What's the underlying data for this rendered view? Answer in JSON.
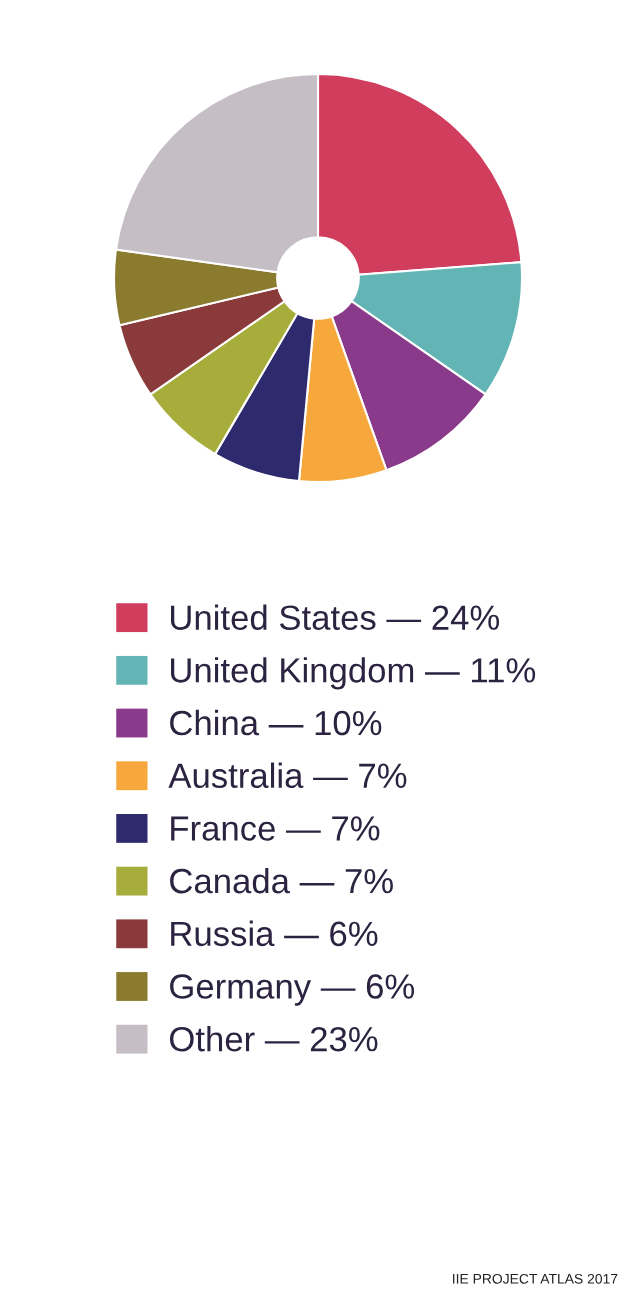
{
  "chart_data": {
    "type": "donut",
    "categories": [
      "United States — 24%",
      "United Kingdom — 11%",
      "China — 10%",
      "Australia — 7%",
      "France — 7%",
      "Canada — 7%",
      "Russia — 6%",
      "Germany — 6%",
      "Other — 23%"
    ],
    "values": [
      24,
      11,
      10,
      7,
      7,
      7,
      6,
      6,
      23
    ],
    "colors": [
      "#d13d5c",
      "#63b5b5",
      "#8a3a8a",
      "#f6a83c",
      "#2d2a6e",
      "#a7ad3a",
      "#8a3a3a",
      "#8a7b2e",
      "#c5bfc5"
    ],
    "legend": "bottom",
    "annotations": [
      "IIE PROJECT ATLAS 2017"
    ]
  }
}
